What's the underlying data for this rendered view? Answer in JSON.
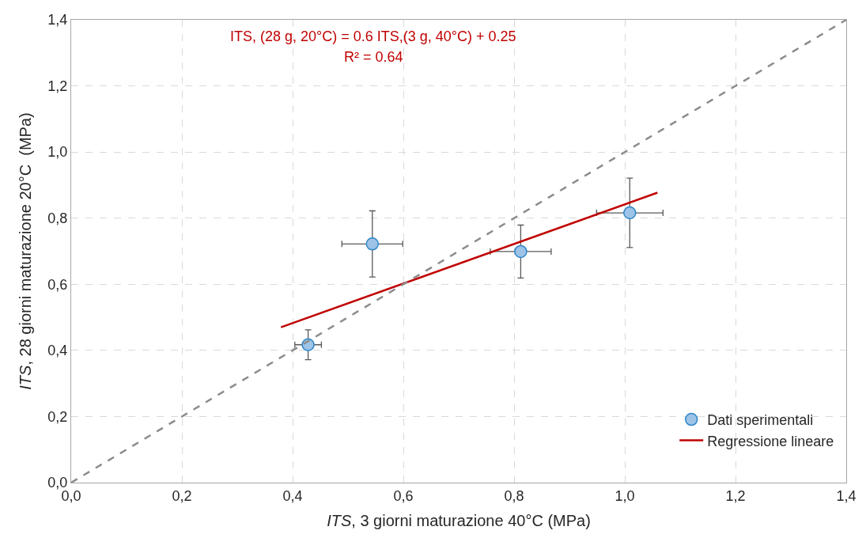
{
  "chart_data": {
    "type": "scatter",
    "xlabel": "ITS, 3 giorni maturazione 40°C (MPa)",
    "ylabel": "ITS, 28 giorni maturazione 20°C  (MPa)",
    "annotations": [
      "ITS, (28 g, 20°C) = 0.6 ITS,(3 g, 40°C) + 0.25",
      "R² = 0.64"
    ],
    "series": [
      {
        "name": "Dati sperimentali",
        "color": "#9dc3e6",
        "x": [
          0.428,
          0.544,
          0.812,
          1.009
        ],
        "values": [
          0.417,
          0.722,
          0.699,
          0.816
        ],
        "errors": [
          0.045,
          0.1,
          0.08,
          0.105
        ],
        "xerrors": [
          0.024,
          0.055,
          0.055,
          0.06
        ],
        "marker": "circle"
      },
      {
        "name": "Regressione lineare",
        "type": "line",
        "color": "#c00000",
        "x": [
          0.379,
          1.059
        ],
        "values": [
          0.47,
          0.877
        ],
        "line_style": "solid"
      },
      {
        "type": "line",
        "color": "#8c8c8c",
        "x": [
          0,
          1.4
        ],
        "values": [
          0,
          1.4
        ],
        "line_style": "dashed"
      }
    ],
    "xlim": [
      0,
      1.4
    ],
    "ylim": [
      0,
      1.4
    ],
    "xticks": [
      {
        "value": 0,
        "label": "0,0"
      },
      {
        "value": 0.2,
        "label": "0,2"
      },
      {
        "value": 0.4,
        "label": "0,4"
      },
      {
        "value": 0.6,
        "label": "0,6"
      },
      {
        "value": 0.8,
        "label": "0,8"
      },
      {
        "value": 1.0,
        "label": "1,0"
      },
      {
        "value": 1.2,
        "label": "1,2"
      },
      {
        "value": 1.4,
        "label": "1,4"
      }
    ],
    "yticks": [
      {
        "value": 0,
        "label": "0,0"
      },
      {
        "value": 0.2,
        "label": "0,2"
      },
      {
        "value": 0.4,
        "label": "0,4"
      },
      {
        "value": 0.6,
        "label": "0,6"
      },
      {
        "value": 0.8,
        "label": "0,8"
      },
      {
        "value": 1.0,
        "label": "1,0"
      },
      {
        "value": 1.2,
        "label": "1,2"
      },
      {
        "value": 1.4,
        "label": "1,4"
      }
    ],
    "grid": true,
    "legend": "bottom right"
  }
}
